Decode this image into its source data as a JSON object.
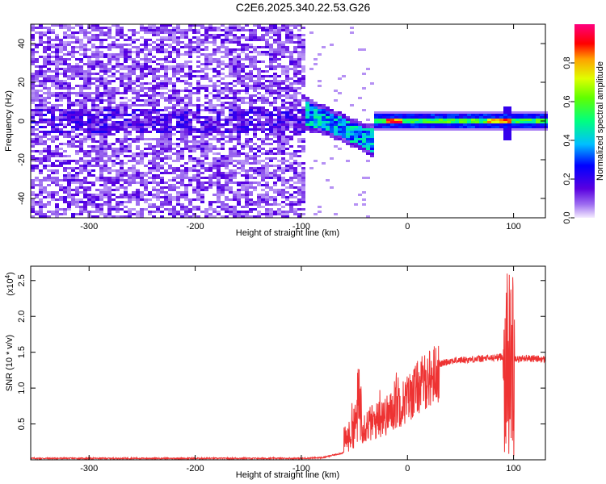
{
  "title": "C2E6.2025.340.22.53.G26",
  "spectrogram": {
    "xlabel": "Height of straight line (km)",
    "ylabel": "Frequency (Hz)",
    "xlim": [
      -355,
      130
    ],
    "ylim": [
      -50,
      50
    ],
    "xticks": [
      "-300",
      "-200",
      "-100",
      "0",
      "100"
    ],
    "xtick_values": [
      -300,
      -200,
      -100,
      0,
      100
    ],
    "yticks": [
      "-40",
      "-20",
      "0",
      "20",
      "40"
    ],
    "ytick_values": [
      -40,
      -20,
      0,
      20,
      40
    ],
    "colorbar": {
      "label": "Normalized spectral amplitude",
      "range": [
        0,
        1
      ],
      "ticks": [
        "0.0",
        "0.2",
        "0.4",
        "0.6",
        "0.8"
      ],
      "tick_values": [
        0.0,
        0.2,
        0.4,
        0.6,
        0.8
      ],
      "colormap": "rainbow"
    }
  },
  "chart_data": [
    {
      "type": "heatmap",
      "title": "C2E6.2025.340.22.53.G26",
      "xlabel": "Height of straight line (km)",
      "ylabel": "Frequency (Hz)",
      "xlim": [
        -355,
        130
      ],
      "ylim": [
        -50,
        50
      ],
      "zlabel": "Normalized spectral amplitude",
      "zlim": [
        0,
        1
      ],
      "features": [
        {
          "region": "noise",
          "x_range": [
            -355,
            -100
          ],
          "y_range": [
            -50,
            50
          ],
          "typical_amplitude": 0.1
        },
        {
          "region": "carrier (dispersed)",
          "x_range": [
            -100,
            -30
          ],
          "frequency_range": [
            -10,
            10
          ],
          "amplitude_range": [
            0.2,
            0.5
          ]
        },
        {
          "region": "carrier line",
          "x_range": [
            -30,
            130
          ],
          "frequency": 0,
          "amplitude_range": [
            0.4,
            0.9
          ]
        },
        {
          "region": "tone spike",
          "x": 95,
          "frequency_range": [
            -10,
            8
          ]
        }
      ]
    },
    {
      "type": "line",
      "xlabel": "Height of straight line (km)",
      "ylabel": "SNR (10 * v/v)",
      "y_multiplier": "(x10^4)",
      "xlim": [
        -355,
        130
      ],
      "ylim": [
        0,
        2.7
      ],
      "xticks": [
        -300,
        -200,
        -100,
        0,
        100
      ],
      "yticks": [
        0.5,
        1.0,
        1.5,
        2.0,
        2.5
      ],
      "series": [
        {
          "color": "#ee3333",
          "x": [
            -355,
            -300,
            -250,
            -200,
            -150,
            -100,
            -80,
            -60,
            -50,
            -40,
            -30,
            -20,
            -10,
            0,
            10,
            20,
            30,
            40,
            60,
            80,
            90,
            95,
            98,
            100,
            105,
            110,
            130
          ],
          "y": [
            0.02,
            0.02,
            0.02,
            0.02,
            0.02,
            0.02,
            0.03,
            0.1,
            0.28,
            0.38,
            0.45,
            0.55,
            0.7,
            0.85,
            1.05,
            1.2,
            1.33,
            1.38,
            1.4,
            1.42,
            1.44,
            1.45,
            1.4,
            1.43,
            1.4,
            1.42,
            1.4
          ],
          "peak_envelope": [
            {
              "x": -50,
              "y": 0.8
            },
            {
              "x": -45,
              "y": 1.3
            },
            {
              "x": -25,
              "y": 1.05
            },
            {
              "x": -10,
              "y": 1.25
            },
            {
              "x": 12,
              "y": 1.3
            },
            {
              "x": 95,
              "y": 2.15
            },
            {
              "x": 98,
              "y": 2.67
            },
            {
              "x": 100,
              "y": 0.05
            }
          ]
        }
      ]
    }
  ],
  "snr": {
    "ylabel": "SNR (10 * v/v)",
    "multiplier": "(x10",
    "multiplier_exp": "4",
    "multiplier_close": ")",
    "xlabel": "Height of straight line (km)",
    "xticks": [
      "-300",
      "-200",
      "-100",
      "0",
      "100"
    ],
    "xtick_values": [
      -300,
      -200,
      -100,
      0,
      100
    ],
    "yticks": [
      "0.5",
      "1.0",
      "1.5",
      "2.0",
      "2.5"
    ],
    "ytick_values": [
      0.5,
      1.0,
      1.5,
      2.0,
      2.5
    ],
    "ylim": [
      0,
      2.7
    ],
    "line_color": "#ee3333"
  }
}
